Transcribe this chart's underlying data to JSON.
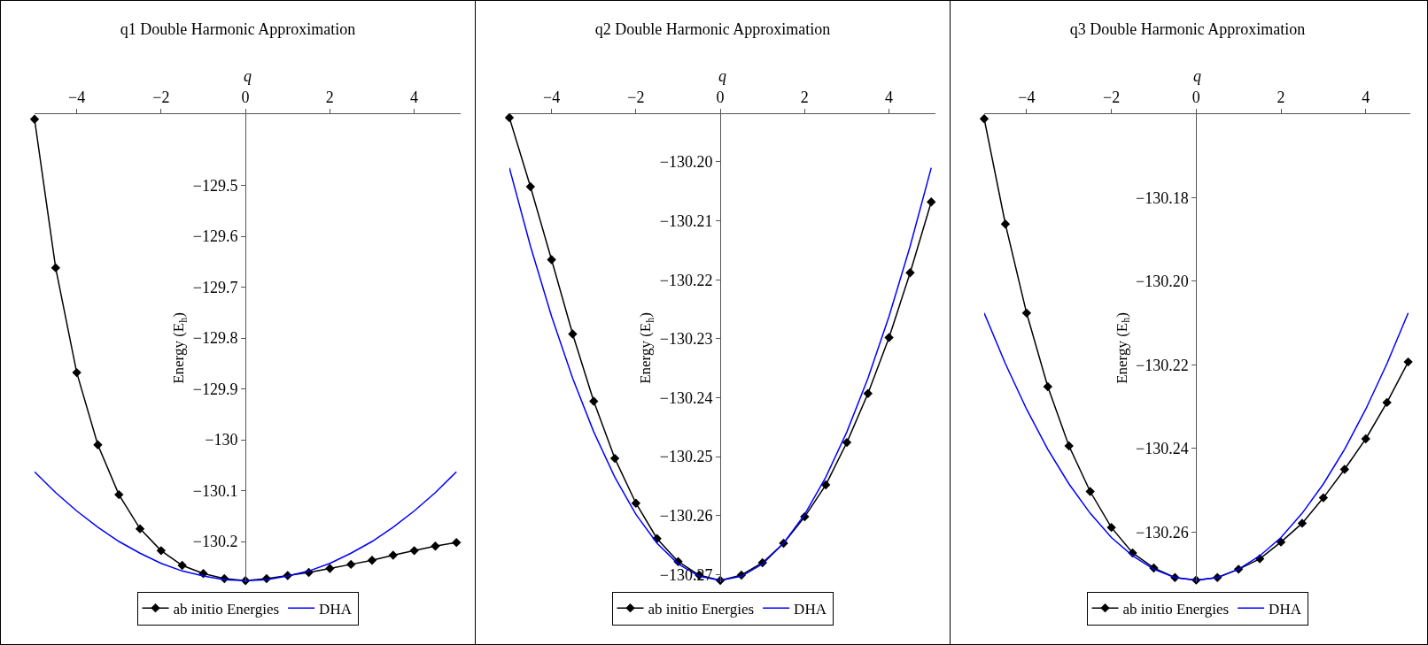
{
  "chart_data": [
    {
      "type": "line",
      "title": "q1 Double Harmonic Approximation",
      "xlabel": "q",
      "ylabel": "Energy (E$_{h}$)",
      "xlim": [
        -5,
        5.1
      ],
      "xticks": [
        -4,
        -2,
        0,
        2,
        4
      ],
      "ylim": [
        -130.28,
        -129.36
      ],
      "yticks": [
        {
          "value": -129.5,
          "label": "−129.5"
        },
        {
          "value": -129.6,
          "label": "−129.6"
        },
        {
          "value": -129.7,
          "label": "−129.7"
        },
        {
          "value": -129.8,
          "label": "−129.8"
        },
        {
          "value": -129.9,
          "label": "−129.9"
        },
        {
          "value": -130,
          "label": "−130"
        },
        {
          "value": -130.1,
          "label": "−130.1"
        },
        {
          "value": -130.2,
          "label": "−130.2"
        }
      ],
      "grid": false,
      "legend": "bottom",
      "line_style": "solid",
      "series": [
        {
          "name": "ab initio Energies",
          "color": "#000000",
          "marker": "diamond",
          "x": [
            -5,
            -4.5,
            -4,
            -3.5,
            -3,
            -2.5,
            -2,
            -1.5,
            -1,
            -0.5,
            0,
            0.5,
            1,
            1.5,
            2,
            2.5,
            3,
            3.5,
            4,
            4.5,
            5
          ],
          "values": [
            -129.37,
            -129.662,
            -129.868,
            -130.01,
            -130.108,
            -130.175,
            -130.218,
            -130.247,
            -130.263,
            -130.273,
            -130.277,
            -130.273,
            -130.267,
            -130.261,
            -130.253,
            -130.245,
            -130.237,
            -130.227,
            -130.218,
            -130.209,
            -130.202
          ]
        },
        {
          "name": "DHA",
          "color": "#0000ff",
          "marker": "none",
          "x": [
            -5,
            -4.5,
            -4,
            -3.5,
            -3,
            -2.5,
            -2,
            -1.5,
            -1,
            -0.5,
            0,
            0.5,
            1,
            1.5,
            2,
            2.5,
            3,
            3.5,
            4,
            4.5,
            5
          ],
          "values": [
            -130.063,
            -130.104,
            -130.14,
            -130.172,
            -130.2,
            -130.223,
            -130.243,
            -130.258,
            -130.268,
            -130.275,
            -130.277,
            -130.275,
            -130.268,
            -130.258,
            -130.243,
            -130.223,
            -130.2,
            -130.172,
            -130.14,
            -130.104,
            -130.063
          ]
        }
      ]
    },
    {
      "type": "line",
      "title": "q2 Double Harmonic Approximation",
      "xlabel": "q",
      "ylabel": "Energy (E$_{h}$)",
      "xlim": [
        -5,
        5.1
      ],
      "xticks": [
        -4,
        -2,
        0,
        2,
        4
      ],
      "ylim": [
        -130.2713,
        -130.1919
      ],
      "yticks": [
        {
          "value": -130.2,
          "label": "−130.20"
        },
        {
          "value": -130.21,
          "label": "−130.21"
        },
        {
          "value": -130.22,
          "label": "−130.22"
        },
        {
          "value": -130.23,
          "label": "−130.23"
        },
        {
          "value": -130.24,
          "label": "−130.24"
        },
        {
          "value": -130.25,
          "label": "−130.25"
        },
        {
          "value": -130.26,
          "label": "−130.26"
        },
        {
          "value": -130.27,
          "label": "−130.27"
        }
      ],
      "grid": false,
      "legend": "bottom",
      "line_style": "solid",
      "series": [
        {
          "name": "ab initio Energies",
          "color": "#000000",
          "marker": "diamond",
          "x": [
            -5,
            -4.5,
            -4,
            -3.5,
            -3,
            -2.5,
            -2,
            -1.5,
            -1,
            -0.5,
            0,
            0.5,
            1,
            1.5,
            2,
            2.5,
            3,
            3.5,
            4,
            4.5,
            5
          ],
          "values": [
            -130.1925,
            -130.2042,
            -130.2166,
            -130.2292,
            -130.2406,
            -130.2503,
            -130.2579,
            -130.2639,
            -130.2678,
            -130.2701,
            -130.271,
            -130.2701,
            -130.268,
            -130.2647,
            -130.2602,
            -130.2548,
            -130.2476,
            -130.2393,
            -130.2298,
            -130.2188,
            -130.2068
          ]
        },
        {
          "name": "DHA",
          "color": "#0000ff",
          "marker": "none",
          "x": [
            -5,
            -4.5,
            -4,
            -3.5,
            -3,
            -2.5,
            -2,
            -1.5,
            -1,
            -0.5,
            0,
            0.5,
            1,
            1.5,
            2,
            2.5,
            3,
            3.5,
            4,
            4.5,
            5
          ],
          "values": [
            -130.201,
            -130.2143,
            -130.2262,
            -130.2367,
            -130.2458,
            -130.2535,
            -130.2598,
            -130.2647,
            -130.2682,
            -130.2703,
            -130.271,
            -130.2703,
            -130.2682,
            -130.2647,
            -130.2598,
            -130.2535,
            -130.2458,
            -130.2367,
            -130.2262,
            -130.2143,
            -130.201
          ]
        }
      ]
    },
    {
      "type": "line",
      "title": "q3 Double Harmonic Approximation",
      "xlabel": "q",
      "ylabel": "Energy (E$_{h}$)",
      "xlim": [
        -5,
        5.05
      ],
      "xticks": [
        -4,
        -2,
        0,
        2,
        4
      ],
      "ylim": [
        -130.272,
        -130.16
      ],
      "yticks": [
        {
          "value": -130.18,
          "label": "−130.18"
        },
        {
          "value": -130.2,
          "label": "−130.20"
        },
        {
          "value": -130.22,
          "label": "−130.22"
        },
        {
          "value": -130.24,
          "label": "−130.24"
        },
        {
          "value": -130.26,
          "label": "−130.26"
        }
      ],
      "grid": false,
      "legend": "bottom",
      "line_style": "solid",
      "series": [
        {
          "name": "ab initio Energies",
          "color": "#000000",
          "marker": "diamond",
          "x": [
            -5,
            -4.5,
            -4,
            -3.5,
            -3,
            -2.5,
            -2,
            -1.5,
            -1,
            -0.5,
            0,
            0.5,
            1,
            1.5,
            2,
            2.5,
            3,
            3.5,
            4,
            4.5,
            5
          ],
          "values": [
            -130.1611,
            -130.1863,
            -130.2076,
            -130.2252,
            -130.2394,
            -130.2503,
            -130.2589,
            -130.265,
            -130.2686,
            -130.2709,
            -130.2715,
            -130.2709,
            -130.2689,
            -130.2664,
            -130.2624,
            -130.2579,
            -130.2518,
            -130.245,
            -130.2377,
            -130.229,
            -130.2193
          ]
        },
        {
          "name": "DHA",
          "color": "#0000ff",
          "marker": "none",
          "x": [
            -5,
            -4.5,
            -4,
            -3.5,
            -3,
            -2.5,
            -2,
            -1.5,
            -1,
            -0.5,
            0,
            0.5,
            1,
            1.5,
            2,
            2.5,
            3,
            3.5,
            4,
            4.5,
            5
          ],
          "values": [
            -130.2076,
            -130.2197,
            -130.2306,
            -130.2402,
            -130.2485,
            -130.2555,
            -130.2613,
            -130.2657,
            -130.2689,
            -130.2709,
            -130.2715,
            -130.2709,
            -130.2689,
            -130.2657,
            -130.2613,
            -130.2555,
            -130.2485,
            -130.2402,
            -130.2306,
            -130.2197,
            -130.2076
          ]
        }
      ]
    }
  ]
}
